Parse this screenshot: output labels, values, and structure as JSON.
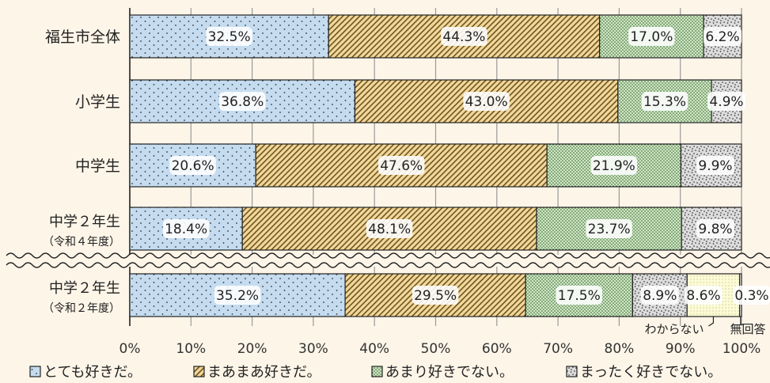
{
  "chart_data": {
    "type": "bar",
    "orientation": "horizontal",
    "stacked": true,
    "categories": [
      {
        "label": "福生市全体",
        "sublabel": ""
      },
      {
        "label": "小学生",
        "sublabel": ""
      },
      {
        "label": "中学生",
        "sublabel": ""
      },
      {
        "label": "中学２年生",
        "sublabel": "（令和４年度）"
      },
      {
        "label": "中学２年生",
        "sublabel": "（令和２年度）"
      }
    ],
    "series": [
      {
        "name": "とても好きだ。",
        "color": "#c5dcf0",
        "pattern": "dots",
        "values": [
          32.5,
          36.8,
          20.6,
          18.4,
          35.2
        ]
      },
      {
        "name": "まあまあ好きだ。",
        "color": "#f3d79a",
        "pattern": "diagonal",
        "values": [
          44.3,
          43.0,
          47.6,
          48.1,
          29.5
        ]
      },
      {
        "name": "あまり好きでない。",
        "color": "#cfe8c2",
        "pattern": "dense-dots",
        "values": [
          17.0,
          15.3,
          21.9,
          23.7,
          17.5
        ]
      },
      {
        "name": "まったく好きでない。",
        "color": "#dcdcdc",
        "pattern": "scatter",
        "values": [
          6.2,
          4.9,
          9.9,
          9.8,
          8.9
        ]
      },
      {
        "name": "わからない",
        "color": "#fdfbd2",
        "pattern": "fine-dots",
        "values": [
          0,
          0,
          0,
          0,
          8.6
        ]
      },
      {
        "name": "無回答",
        "color": "#ffffff",
        "pattern": "none",
        "values": [
          0,
          0,
          0,
          0,
          0.3
        ]
      }
    ],
    "value_labels": [
      [
        "32.5%",
        "44.3%",
        "17.0%",
        "6.2%",
        "",
        ""
      ],
      [
        "36.8%",
        "43.0%",
        "15.3%",
        "4.9%",
        "",
        ""
      ],
      [
        "20.6%",
        "47.6%",
        "21.9%",
        "9.9%",
        "",
        ""
      ],
      [
        "18.4%",
        "48.1%",
        "23.7%",
        "9.8%",
        "",
        ""
      ],
      [
        "35.2%",
        "29.5%",
        "17.5%",
        "8.9%",
        "8.6%",
        "0.3%"
      ]
    ],
    "x_ticks": [
      0,
      10,
      20,
      30,
      40,
      50,
      60,
      70,
      80,
      90,
      100
    ],
    "x_tick_labels": [
      "0%",
      "10%",
      "20%",
      "30%",
      "40%",
      "50%",
      "60%",
      "70%",
      "80%",
      "90%",
      "100%"
    ],
    "xlim": [
      0,
      100
    ],
    "grid": true,
    "legend_position": "bottom",
    "axis_break_between": [
      "3",
      "4"
    ],
    "callouts": [
      {
        "text": "わからない",
        "category_index": 4,
        "series_index": 4
      },
      {
        "text": "無回答",
        "category_index": 4,
        "series_index": 5
      }
    ],
    "legend": [
      "とても好きだ。",
      "まあまあ好きだ。",
      "あまり好きでない。",
      "まったく好きでない。"
    ]
  }
}
